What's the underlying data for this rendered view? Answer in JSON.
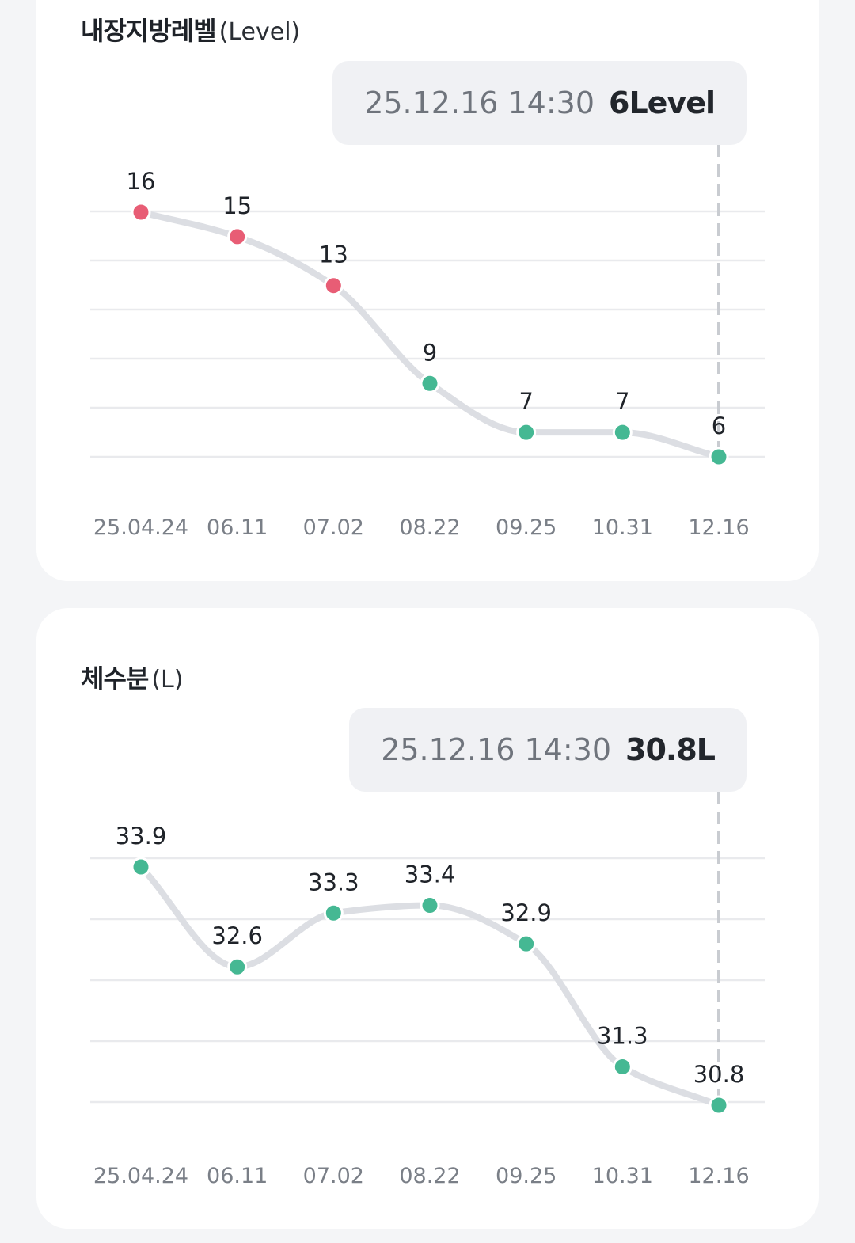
{
  "colors": {
    "high": "#e85d75",
    "normal": "#45b893"
  },
  "chart_data": [
    {
      "type": "line",
      "title": "내장지방레벨",
      "unit": "(Level)",
      "categories": [
        "25.04.24",
        "06.11",
        "07.02",
        "08.22",
        "09.25",
        "10.31",
        "12.16"
      ],
      "values": [
        16,
        15,
        13,
        9,
        7,
        7,
        6
      ],
      "status": [
        "high",
        "high",
        "high",
        "normal",
        "normal",
        "normal",
        "normal"
      ],
      "ylim": [
        6,
        16
      ],
      "grid": true,
      "selected_index": 6,
      "tooltip": {
        "date": "25.12.16 14:30",
        "value": "6Level"
      }
    },
    {
      "type": "line",
      "title": "체수분",
      "unit": "(L)",
      "categories": [
        "25.04.24",
        "06.11",
        "07.02",
        "08.22",
        "09.25",
        "10.31",
        "12.16"
      ],
      "values": [
        33.9,
        32.6,
        33.3,
        33.4,
        32.9,
        31.3,
        30.8
      ],
      "status": [
        "normal",
        "normal",
        "normal",
        "normal",
        "normal",
        "normal",
        "normal"
      ],
      "ylim": [
        30.8,
        33.9
      ],
      "grid": true,
      "selected_index": 6,
      "tooltip": {
        "date": "25.12.16 14:30",
        "value": "30.8L"
      }
    }
  ]
}
